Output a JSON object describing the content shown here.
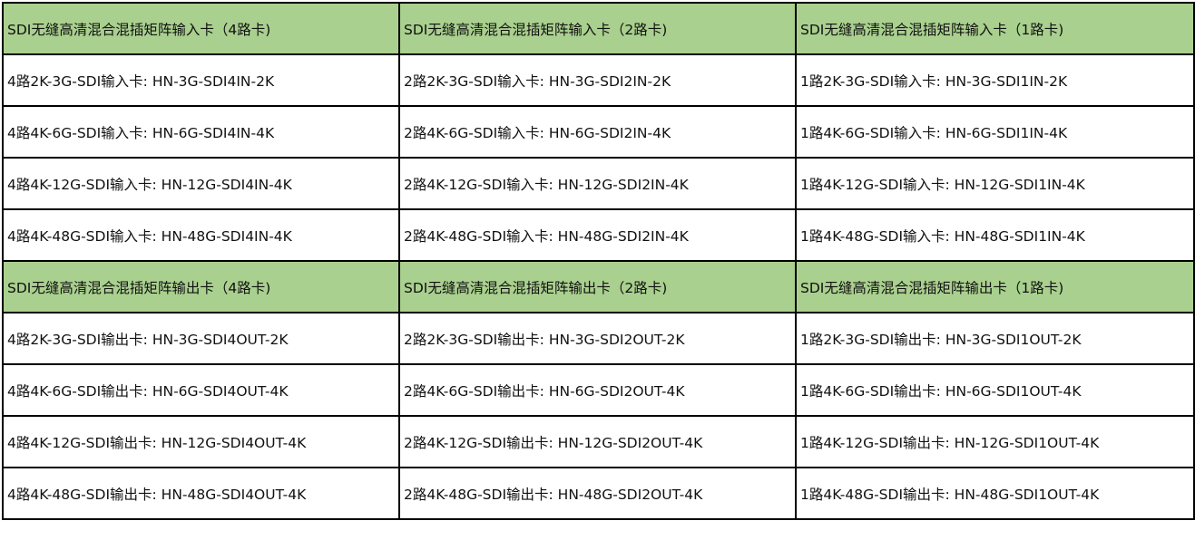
{
  "colors": {
    "header_bg": "#a9d08e",
    "border": "#000000"
  },
  "sections": [
    {
      "header": [
        "SDI无缝高清混合混插矩阵输入卡（4路卡)",
        "SDI无缝高清混合混插矩阵输入卡（2路卡)",
        "SDI无缝高清混合混插矩阵输入卡（1路卡)"
      ],
      "rows": [
        [
          "4路2K-3G-SDI输入卡: HN-3G-SDI4IN-2K",
          "2路2K-3G-SDI输入卡: HN-3G-SDI2IN-2K",
          "1路2K-3G-SDI输入卡: HN-3G-SDI1IN-2K"
        ],
        [
          "4路4K-6G-SDI输入卡: HN-6G-SDI4IN-4K",
          "2路4K-6G-SDI输入卡: HN-6G-SDI2IN-4K",
          "1路4K-6G-SDI输入卡: HN-6G-SDI1IN-4K"
        ],
        [
          "4路4K-12G-SDI输入卡: HN-12G-SDI4IN-4K",
          "2路4K-12G-SDI输入卡: HN-12G-SDI2IN-4K",
          "1路4K-12G-SDI输入卡: HN-12G-SDI1IN-4K"
        ],
        [
          "4路4K-48G-SDI输入卡: HN-48G-SDI4IN-4K",
          "2路4K-48G-SDI输入卡: HN-48G-SDI2IN-4K",
          "1路4K-48G-SDI输入卡: HN-48G-SDI1IN-4K"
        ]
      ]
    },
    {
      "header": [
        "SDI无缝高清混合混插矩阵输出卡（4路卡)",
        "SDI无缝高清混合混插矩阵输出卡（2路卡)",
        "SDI无缝高清混合混插矩阵输出卡（1路卡)"
      ],
      "rows": [
        [
          "4路2K-3G-SDI输出卡: HN-3G-SDI4OUT-2K",
          "2路2K-3G-SDI输出卡: HN-3G-SDI2OUT-2K",
          "1路2K-3G-SDI输出卡: HN-3G-SDI1OUT-2K"
        ],
        [
          "4路4K-6G-SDI输出卡: HN-6G-SDI4OUT-4K",
          "2路4K-6G-SDI输出卡: HN-6G-SDI2OUT-4K",
          "1路4K-6G-SDI输出卡: HN-6G-SDI1OUT-4K"
        ],
        [
          "4路4K-12G-SDI输出卡: HN-12G-SDI4OUT-4K",
          "2路4K-12G-SDI输出卡: HN-12G-SDI2OUT-4K",
          "1路4K-12G-SDI输出卡: HN-12G-SDI1OUT-4K"
        ],
        [
          "4路4K-48G-SDI输出卡: HN-48G-SDI4OUT-4K",
          "2路4K-48G-SDI输出卡: HN-48G-SDI2OUT-4K",
          "1路4K-48G-SDI输出卡: HN-48G-SDI1OUT-4K"
        ]
      ]
    }
  ]
}
